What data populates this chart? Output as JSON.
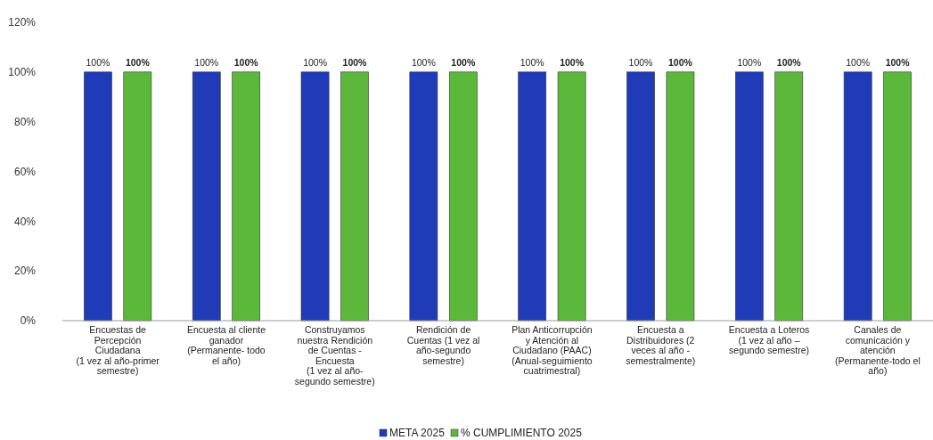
{
  "chart_data": {
    "type": "bar",
    "categories": [
      "Encuestas de\nPercepción\nCiudadana\n(1 vez al año-primer\nsemestre)",
      "Encuesta al cliente\nganador\n(Permanente- todo\nel año)",
      "Construyamos\nnuestra Rendición\nde Cuentas -\nEncuesta\n(1 vez al año-\nsegundo semestre)",
      "Rendición de\nCuentas (1 vez al\naño-segundo\nsemestre)",
      "Plan Anticorrupción\ny Atención al\nCiudadano (PAAC)\n(Anual-seguimiento\ncuatrimestral)",
      "Encuesta a\nDistribuidores (2\nveces al año -\nsemestralmente)",
      "Encuesta a Loteros\n(1 vez al año –\nsegundo semestre)",
      "Canales de\ncomunicación y\natención\n(Permanente-todo el\naño)"
    ],
    "series": [
      {
        "name": "META 2025",
        "color": "#1f3bb8",
        "values": [
          100,
          100,
          100,
          100,
          100,
          100,
          100,
          100
        ],
        "value_labels": [
          "100%",
          "100%",
          "100%",
          "100%",
          "100%",
          "100%",
          "100%",
          "100%"
        ]
      },
      {
        "name": "% CUMPLIMIENTO 2025",
        "color": "#5cb83a",
        "values": [
          100,
          100,
          100,
          100,
          100,
          100,
          100,
          100
        ],
        "value_labels": [
          "100%",
          "100%",
          "100%",
          "100%",
          "100%",
          "100%",
          "100%",
          "100%"
        ]
      }
    ],
    "ylim": [
      0,
      120
    ],
    "yticks": [
      {
        "value": 0,
        "label": "0%"
      },
      {
        "value": 20,
        "label": "20%"
      },
      {
        "value": 40,
        "label": "40%"
      },
      {
        "value": 60,
        "label": "60%"
      },
      {
        "value": 80,
        "label": "80%"
      },
      {
        "value": 100,
        "label": "100%"
      },
      {
        "value": 120,
        "label": "120%"
      }
    ],
    "legend": "bottom"
  }
}
